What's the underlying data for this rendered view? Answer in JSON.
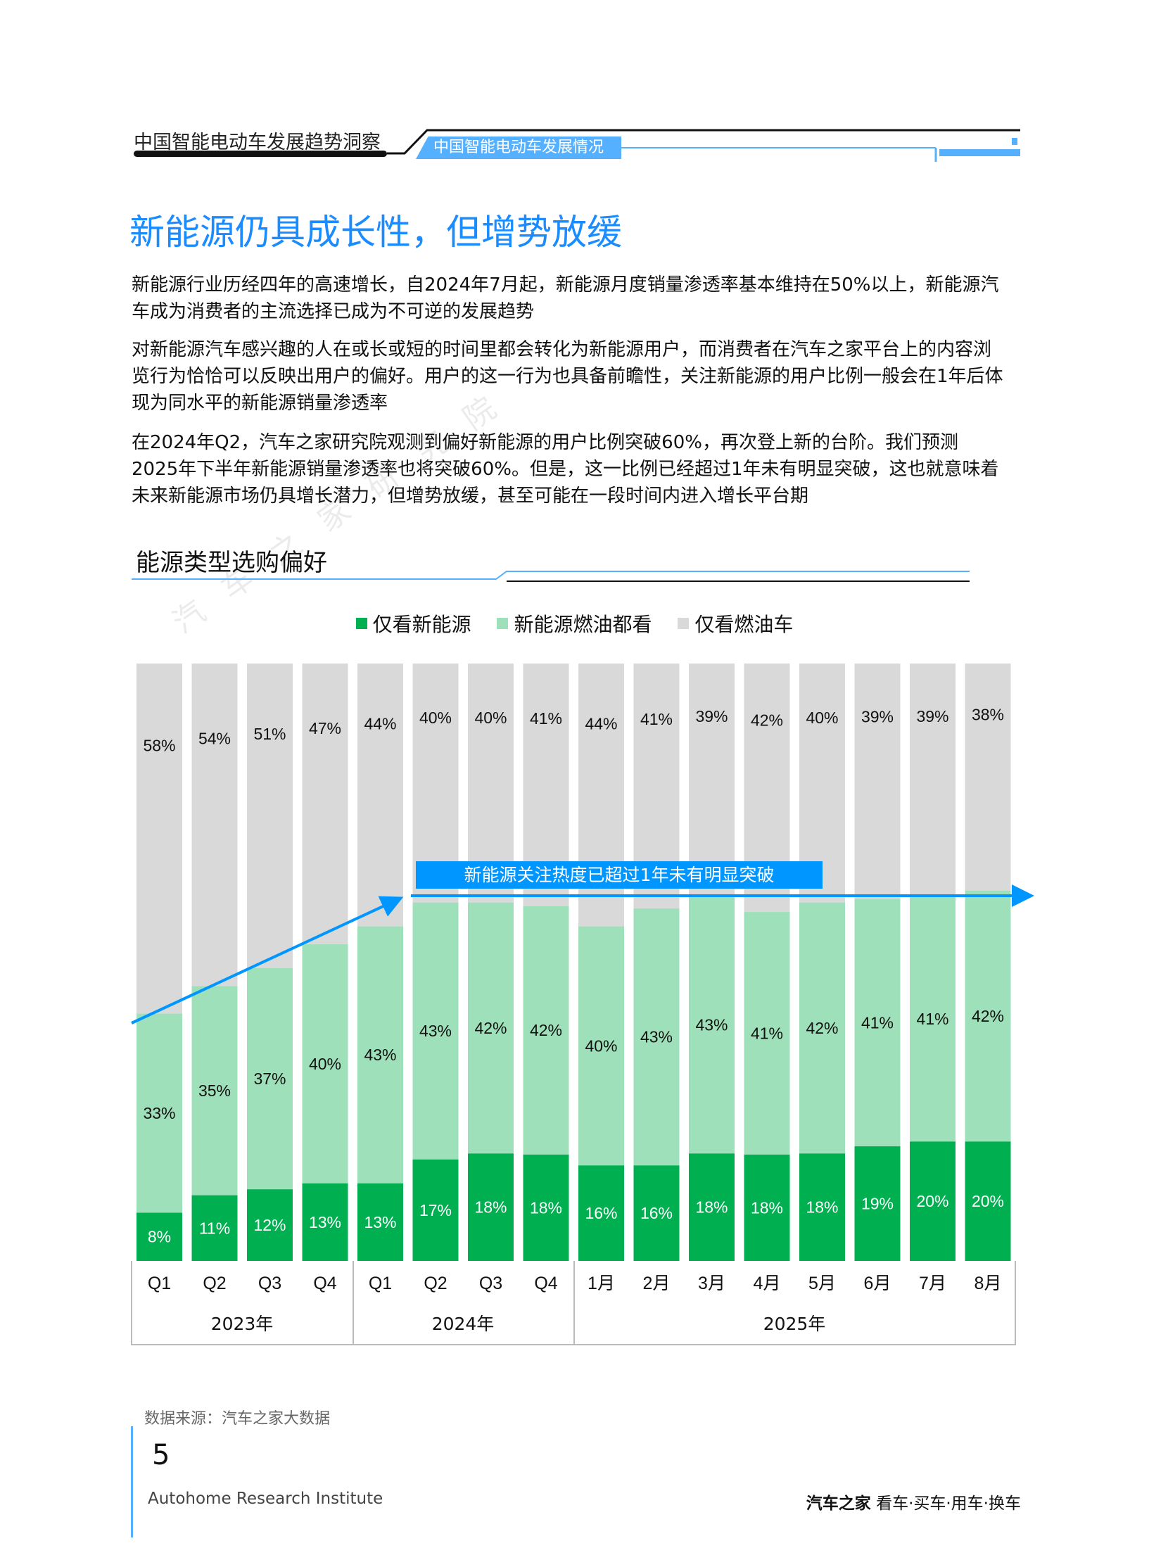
{
  "header": {
    "report_title": "中国智能电动车发展趋势洞察",
    "section_tab": "中国智能电动车发展情况"
  },
  "page_title": "新能源仍具成长性，但增势放缓",
  "paragraphs": [
    "新能源行业历经四年的高速增长，自2024年7月起，新能源月度销量渗透率基本维持在50%以上，新能源汽车成为消费者的主流选择已成为不可逆的发展趋势",
    "对新能源汽车感兴趣的人在或长或短的时间里都会转化为新能源用户，而消费者在汽车之家平台上的内容浏览行为恰恰可以反映出用户的偏好。用户的这一行为也具备前瞻性，关注新能源的用户比例一般会在1年后体现为同水平的新能源销量渗透率",
    "在2024年Q2，汽车之家研究院观测到偏好新能源的用户比例突破60%，再次登上新的台阶。我们预测2025年下半年新能源销量渗透率也将突破60%。但是，这一比例已经超过1年未有明显突破，这也就意味着未来新能源市场仍具增长潜力，但增势放缓，甚至可能在一段时间内进入增长平台期"
  ],
  "section_title": "能源类型选购偏好",
  "watermark": "汽车之家研究院",
  "chart_data": {
    "type": "bar",
    "stacked": true,
    "categories": [
      "Q1",
      "Q2",
      "Q3",
      "Q4",
      "Q1",
      "Q2",
      "Q3",
      "Q4",
      "1月",
      "2月",
      "3月",
      "4月",
      "5月",
      "6月",
      "7月",
      "8月"
    ],
    "groups": [
      {
        "label": "2023年",
        "count": 4
      },
      {
        "label": "2024年",
        "count": 4
      },
      {
        "label": "2025年",
        "count": 8
      }
    ],
    "series": [
      {
        "name": "仅看新能源",
        "color": "#00b050",
        "values": [
          8,
          11,
          12,
          13,
          13,
          17,
          18,
          18,
          16,
          16,
          18,
          18,
          18,
          19,
          20,
          20
        ]
      },
      {
        "name": "新能源燃油都看",
        "color": "#9ee0b9",
        "values": [
          33,
          35,
          37,
          40,
          43,
          43,
          42,
          42,
          40,
          43,
          43,
          41,
          42,
          41,
          41,
          42
        ]
      },
      {
        "name": "仅看燃油车",
        "color": "#d9d9d9",
        "values": [
          58,
          54,
          51,
          47,
          44,
          40,
          40,
          41,
          44,
          41,
          39,
          42,
          40,
          39,
          39,
          38
        ]
      }
    ],
    "value_format": "%",
    "legend_position": "top",
    "annotation": {
      "text": "新能源关注热度已超过1年未有明显突破",
      "color": "#0096ff"
    },
    "ylim": [
      0,
      100
    ],
    "grid": false
  },
  "footer": {
    "source": "数据来源：汽车之家大数据",
    "page_number": "5",
    "institute": "Autohome Research Institute",
    "brand_name": "汽车之家",
    "brand_slogan": "看车·买车·用车·换车"
  }
}
